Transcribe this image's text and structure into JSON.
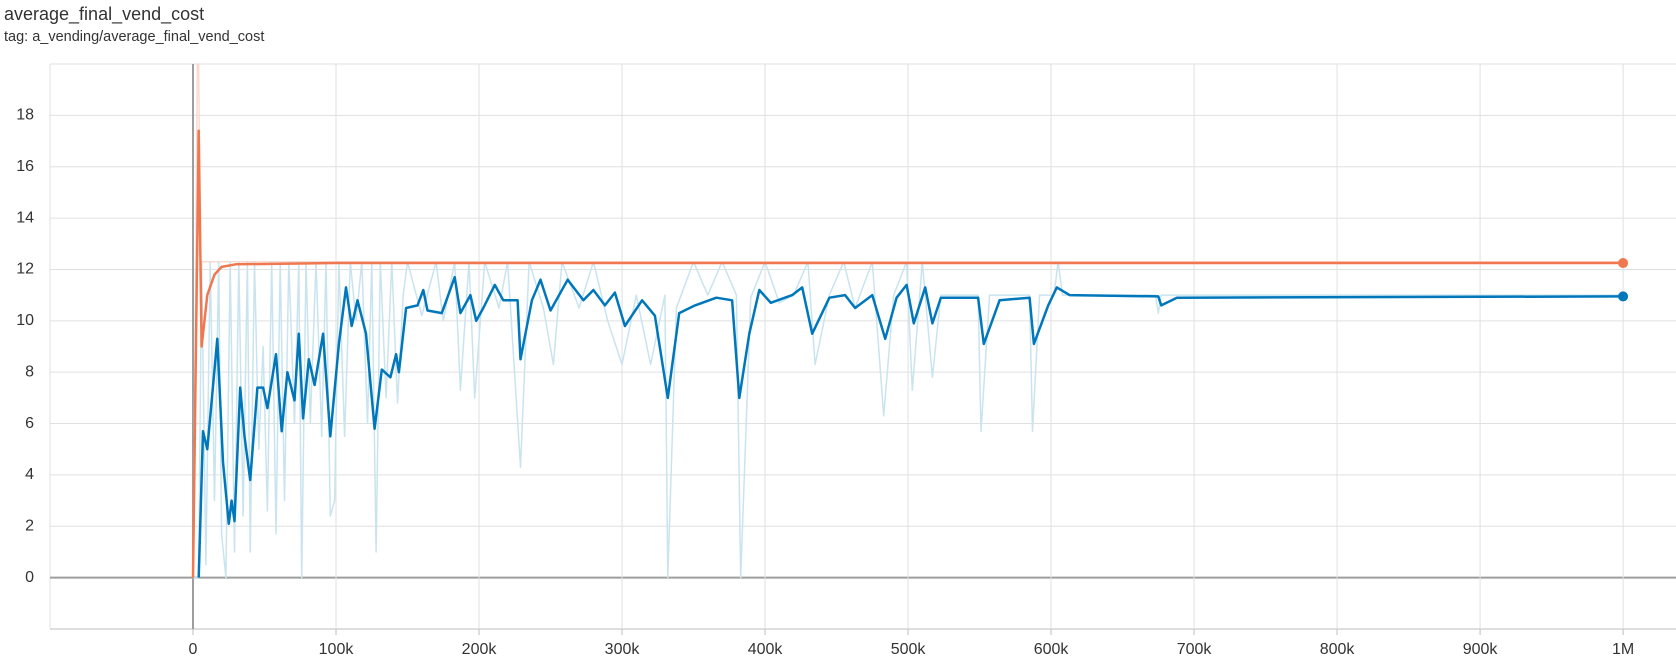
{
  "chart_data": {
    "type": "line",
    "title": "average_final_vend_cost",
    "subtitle": "tag: a_vending/average_final_vend_cost",
    "xlim": [
      -100000,
      1037000
    ],
    "ylim": [
      -2,
      20
    ],
    "xticks": [
      0,
      {
        "value": 100000,
        "label": "100k"
      },
      {
        "value": 200000,
        "label": "200k"
      },
      {
        "value": 300000,
        "label": "300k"
      },
      {
        "value": 400000,
        "label": "400k"
      },
      {
        "value": 500000,
        "label": "500k"
      },
      {
        "value": 600000,
        "label": "600k"
      },
      {
        "value": 700000,
        "label": "700k"
      },
      {
        "value": 800000,
        "label": "800k"
      },
      {
        "value": 900000,
        "label": "900k"
      },
      {
        "value": 1000000,
        "label": "1M"
      }
    ],
    "yticks": [
      0,
      2,
      4,
      6,
      8,
      10,
      12,
      14,
      16,
      18
    ],
    "grid": true,
    "series": [
      {
        "color": "#fbd9cf",
        "line_width": 1.5,
        "end_marker": false,
        "x": [
          0,
          2000,
          3000,
          4000,
          5000,
          8000,
          1000000
        ],
        "values": [
          0,
          12,
          20,
          20,
          12.3,
          12.3,
          12.3
        ]
      },
      {
        "color": "#c9e4ef",
        "line_width": 1.5,
        "end_marker": false,
        "x": [
          0,
          4000,
          6000,
          9000,
          12000,
          15000,
          18000,
          20000,
          23000,
          26000,
          29000,
          32000,
          35000,
          38000,
          40000,
          43000,
          46000,
          49000,
          52000,
          55000,
          58000,
          61000,
          64000,
          67000,
          71000,
          74000,
          76000,
          79000,
          82000,
          86000,
          90000,
          93000,
          96000,
          99000,
          102000,
          106000,
          110000,
          114000,
          118000,
          122000,
          125000,
          128000,
          131000,
          135000,
          139000,
          143000,
          147000,
          150000,
          160000,
          170000,
          175000,
          183000,
          187000,
          193000,
          197000,
          204000,
          214000,
          220000,
          229000,
          235000,
          245000,
          252000,
          258000,
          270000,
          280000,
          290000,
          300000,
          310000,
          320000,
          330000,
          332000,
          338000,
          350000,
          360000,
          370000,
          380000,
          383000,
          390000,
          400000,
          410000,
          420000,
          430000,
          435000,
          445000,
          455000,
          463000,
          475000,
          483000,
          490000,
          499000,
          503000,
          510000,
          517000,
          523000,
          549000,
          551000,
          557000,
          585000,
          587000,
          592000,
          602000,
          605000,
          608000,
          673000,
          675000,
          677000,
          1000000
        ],
        "values": [
          0,
          0,
          12.3,
          0.5,
          12.3,
          3,
          12.3,
          1.7,
          0,
          12.3,
          1,
          12.3,
          2.4,
          12.3,
          1,
          12.3,
          5,
          9,
          2.6,
          12.3,
          1.7,
          12.3,
          3,
          12.3,
          6,
          12.3,
          0,
          12.3,
          6,
          12.3,
          5.5,
          12.3,
          2.4,
          3,
          12.3,
          5.5,
          12.3,
          10,
          12.3,
          6,
          12.3,
          1,
          12.3,
          7,
          12.3,
          6.8,
          11,
          12.3,
          10.2,
          12.3,
          10,
          12.3,
          7.3,
          12.3,
          7,
          12.3,
          10.5,
          12.3,
          4.3,
          12.3,
          10.5,
          8.3,
          12.3,
          10.5,
          12.3,
          10,
          8.3,
          11,
          8.3,
          11,
          0,
          10.5,
          12.3,
          11,
          12.3,
          11,
          0,
          10.9,
          12.3,
          10.7,
          11,
          12.3,
          8.3,
          11,
          12.3,
          10.5,
          12.3,
          6.3,
          11,
          12.3,
          7.3,
          12.3,
          7.8,
          11,
          11,
          5.7,
          11,
          11,
          5.7,
          11,
          11,
          12.3,
          11,
          11,
          10.3,
          11,
          11
        ]
      },
      {
        "color": "#f07850",
        "line_width": 2.5,
        "end_marker": true,
        "x": [
          0,
          4000,
          6000,
          10000,
          15000,
          20000,
          30000,
          100000,
          1000000
        ],
        "values": [
          0,
          17.4,
          9.0,
          11.0,
          11.8,
          12.1,
          12.2,
          12.25,
          12.25
        ]
      },
      {
        "color": "#0077bb",
        "line_width": 2.5,
        "end_marker": true,
        "x": [
          4000,
          7000,
          10000,
          17000,
          21000,
          25000,
          27000,
          29000,
          33000,
          36000,
          40000,
          45000,
          49000,
          52000,
          58000,
          62000,
          66000,
          71000,
          74000,
          77000,
          81000,
          85000,
          91000,
          96000,
          102000,
          107000,
          111000,
          115000,
          121000,
          127000,
          132000,
          138000,
          142000,
          144000,
          149000,
          157000,
          161000,
          164000,
          174000,
          183000,
          187000,
          194000,
          198000,
          203000,
          211000,
          217000,
          227000,
          229000,
          237000,
          243000,
          250000,
          262000,
          273000,
          280000,
          288000,
          295000,
          302000,
          314000,
          323000,
          332000,
          340000,
          351000,
          366000,
          377000,
          382000,
          389000,
          396000,
          404000,
          419000,
          426000,
          433000,
          445000,
          456000,
          463000,
          475000,
          484000,
          492000,
          499000,
          504000,
          512000,
          517000,
          523000,
          549000,
          553000,
          564000,
          585000,
          588000,
          598000,
          604000,
          613000,
          675000,
          677000,
          688000,
          1000000
        ],
        "values": [
          0,
          5.7,
          5,
          9.3,
          4.5,
          2.1,
          3.0,
          2.2,
          7.4,
          5.5,
          3.8,
          7.4,
          7.4,
          6.6,
          8.7,
          5.7,
          8.0,
          6.9,
          9.5,
          6.2,
          8.5,
          7.5,
          9.5,
          5.5,
          9.1,
          11.3,
          9.8,
          10.8,
          9.5,
          5.8,
          8.1,
          7.8,
          8.7,
          8.0,
          10.5,
          10.6,
          11.2,
          10.4,
          10.3,
          11.7,
          10.3,
          11.0,
          10.0,
          10.5,
          11.4,
          10.8,
          10.8,
          8.5,
          10.8,
          11.6,
          10.4,
          11.6,
          10.8,
          11.2,
          10.6,
          11.1,
          9.8,
          10.8,
          10.2,
          7.0,
          10.3,
          10.6,
          10.9,
          10.8,
          7.0,
          9.5,
          11.2,
          10.7,
          11.0,
          11.3,
          9.5,
          10.9,
          11.0,
          10.5,
          11.0,
          9.3,
          10.9,
          11.4,
          9.9,
          11.3,
          9.9,
          10.9,
          10.9,
          9.1,
          10.8,
          10.9,
          9.1,
          10.6,
          11.3,
          11.0,
          10.95,
          10.6,
          10.9,
          10.95
        ]
      }
    ]
  }
}
